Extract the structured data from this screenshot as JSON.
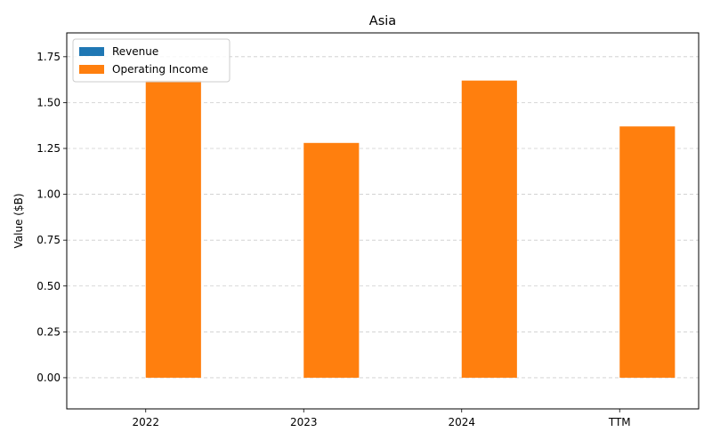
{
  "chart_data": {
    "type": "bar",
    "title": "Asia",
    "xlabel": "",
    "ylabel": "Value ($B)",
    "categories": [
      "2022",
      "2023",
      "2024",
      "TTM"
    ],
    "series": [
      {
        "name": "Revenue",
        "values": [
          0,
          0,
          0,
          0
        ],
        "color": "#1f77b4"
      },
      {
        "name": "Operating Income",
        "values": [
          1.62,
          1.28,
          1.62,
          1.37
        ],
        "color": "#ff7f0e"
      }
    ],
    "ylim": [
      -0.17,
      1.88
    ],
    "yticks": [
      "0.00",
      "0.25",
      "0.50",
      "0.75",
      "1.00",
      "1.25",
      "1.50",
      "1.75"
    ],
    "grid": true,
    "legend_position": "top-left"
  }
}
